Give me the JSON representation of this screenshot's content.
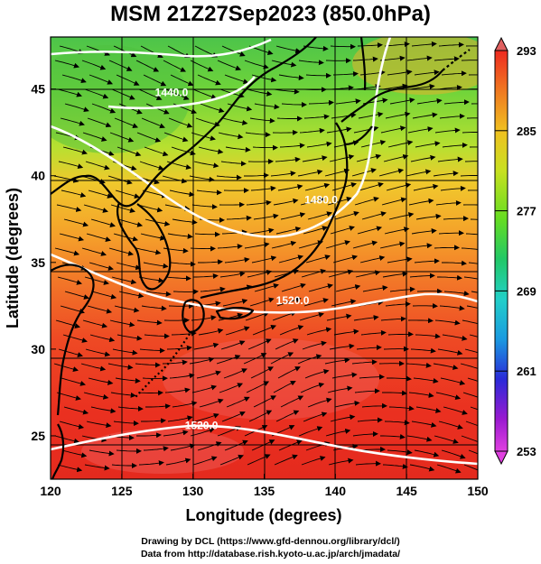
{
  "title": "MSM 21Z27Sep2023 (850.0hPa)",
  "map": {
    "lon_range": [
      120,
      150
    ],
    "lat_range": [
      22.5,
      48
    ],
    "x_ticks": [
      "120",
      "125",
      "130",
      "135",
      "140",
      "145",
      "150"
    ],
    "y_ticks": [
      "25",
      "30",
      "35",
      "40",
      "45"
    ],
    "x_label": "Longitude (degrees)",
    "y_label": "Latitude  (degrees)",
    "contour_labels": [
      {
        "text": "1440.0",
        "lon": 128.5,
        "lat": 44.6
      },
      {
        "text": "1480.0",
        "lon": 139.0,
        "lat": 38.4
      },
      {
        "text": "1520.0",
        "lon": 137.0,
        "lat": 32.6
      },
      {
        "text": "1520.0",
        "lon": 130.6,
        "lat": 25.4
      }
    ]
  },
  "colorbar": {
    "labels": [
      "293",
      "285",
      "277",
      "269",
      "261",
      "253"
    ],
    "min": 253,
    "max": 293,
    "colors": [
      "#ffffff",
      "#e040e0",
      "#9a1ad0",
      "#2a2ad8",
      "#1a9ae0",
      "#22d0c8",
      "#22c866",
      "#66dd22",
      "#c8e020",
      "#f0c020",
      "#f07820",
      "#ee2a20",
      "#e06060"
    ]
  },
  "footer": {
    "line1": "Drawing by DCL (https://www.gfd-dennou.org/library/dcl/)",
    "line2": "Data from http://database.rish.kyoto-u.ac.jp/arch/jmadata/"
  }
}
